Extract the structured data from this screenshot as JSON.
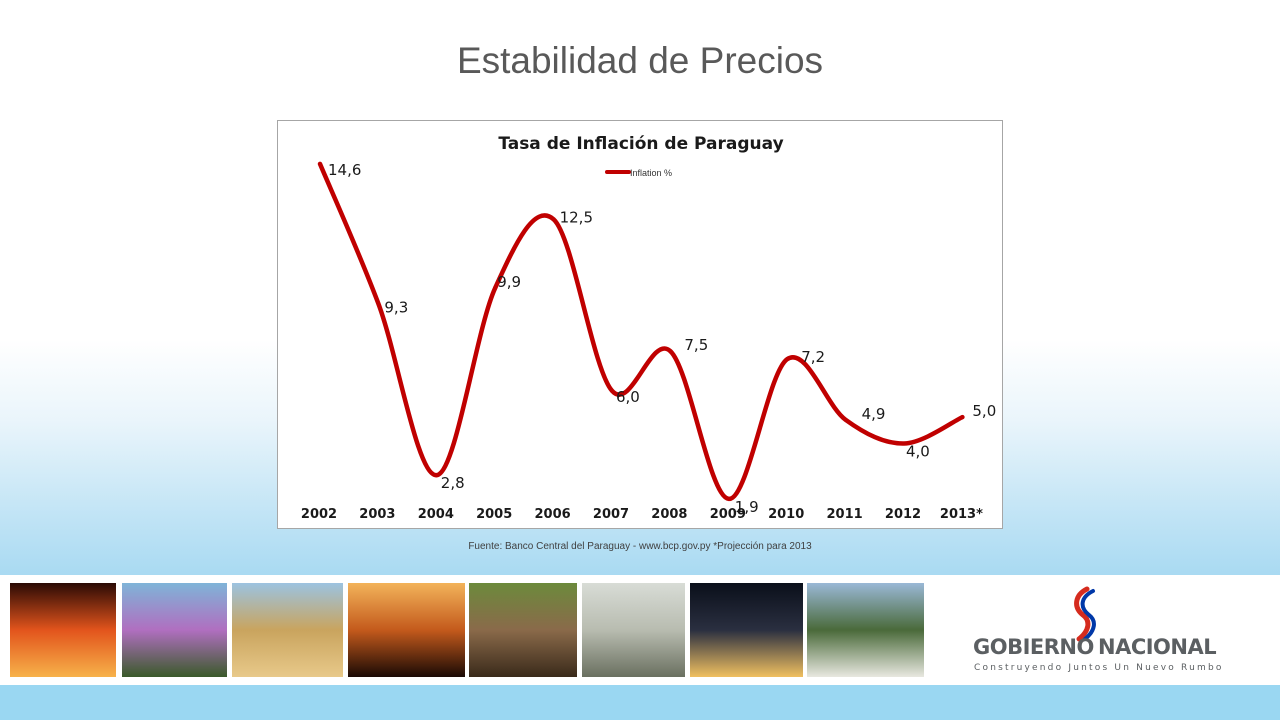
{
  "slide": {
    "title": "Estabilidad de Precios",
    "source_note": "Fuente: Banco Central del Paraguay - www.bcp.gov.py *Projección para 2013"
  },
  "chart_data": {
    "type": "line",
    "title": "Tasa de Inflación de Paraguay",
    "categories": [
      "2002",
      "2003",
      "2004",
      "2005",
      "2006",
      "2007",
      "2008",
      "2009",
      "2010",
      "2011",
      "2012",
      "2013*"
    ],
    "series": [
      {
        "name": "Inflation %",
        "values": [
          14.6,
          9.3,
          2.8,
          9.9,
          12.5,
          6.0,
          7.5,
          1.9,
          7.2,
          4.9,
          4.0,
          5.0
        ],
        "labels": [
          "14,6",
          "9,3",
          "2,8",
          "9,9",
          "12,5",
          "6,0",
          "7,5",
          "1,9",
          "7,2",
          "4,9",
          "4,0",
          "5,0"
        ],
        "color": "#c00000"
      }
    ],
    "legend": "top-center",
    "ylim": [
      0,
      16
    ],
    "grid": false,
    "xlabel": "",
    "ylabel": ""
  },
  "footer": {
    "photos": [
      {
        "name": "palacio-photo",
        "colors": [
          "#2a0a05",
          "#e2541c",
          "#f7b24a"
        ]
      },
      {
        "name": "lapacho-tree-photo",
        "colors": [
          "#7fb4d8",
          "#b06fc0",
          "#3a5a2a"
        ]
      },
      {
        "name": "soybean-harvest-photo",
        "colors": [
          "#9cc3e0",
          "#c9a45e",
          "#e8c98a"
        ]
      },
      {
        "name": "sunset-palms-photo",
        "colors": [
          "#f3b35a",
          "#c45a1c",
          "#1a0a05"
        ]
      },
      {
        "name": "cattle-herd-photo",
        "colors": [
          "#6c8a3c",
          "#8a6a4a",
          "#3a2a1a"
        ]
      },
      {
        "name": "factory-workers-photo",
        "colors": [
          "#d8dcd6",
          "#b8bcb0",
          "#6a7060"
        ]
      },
      {
        "name": "night-port-photo",
        "colors": [
          "#0a0f1a",
          "#2a2f40",
          "#f0c060"
        ]
      },
      {
        "name": "river-barge-photo",
        "colors": [
          "#9ab8d6",
          "#4a6a3a",
          "#e8e8e0"
        ]
      }
    ],
    "logo": {
      "word1": "GOBIERNO",
      "word2": "NACIONAL",
      "tagline": "Construyendo Juntos Un Nuevo Rumbo"
    }
  }
}
